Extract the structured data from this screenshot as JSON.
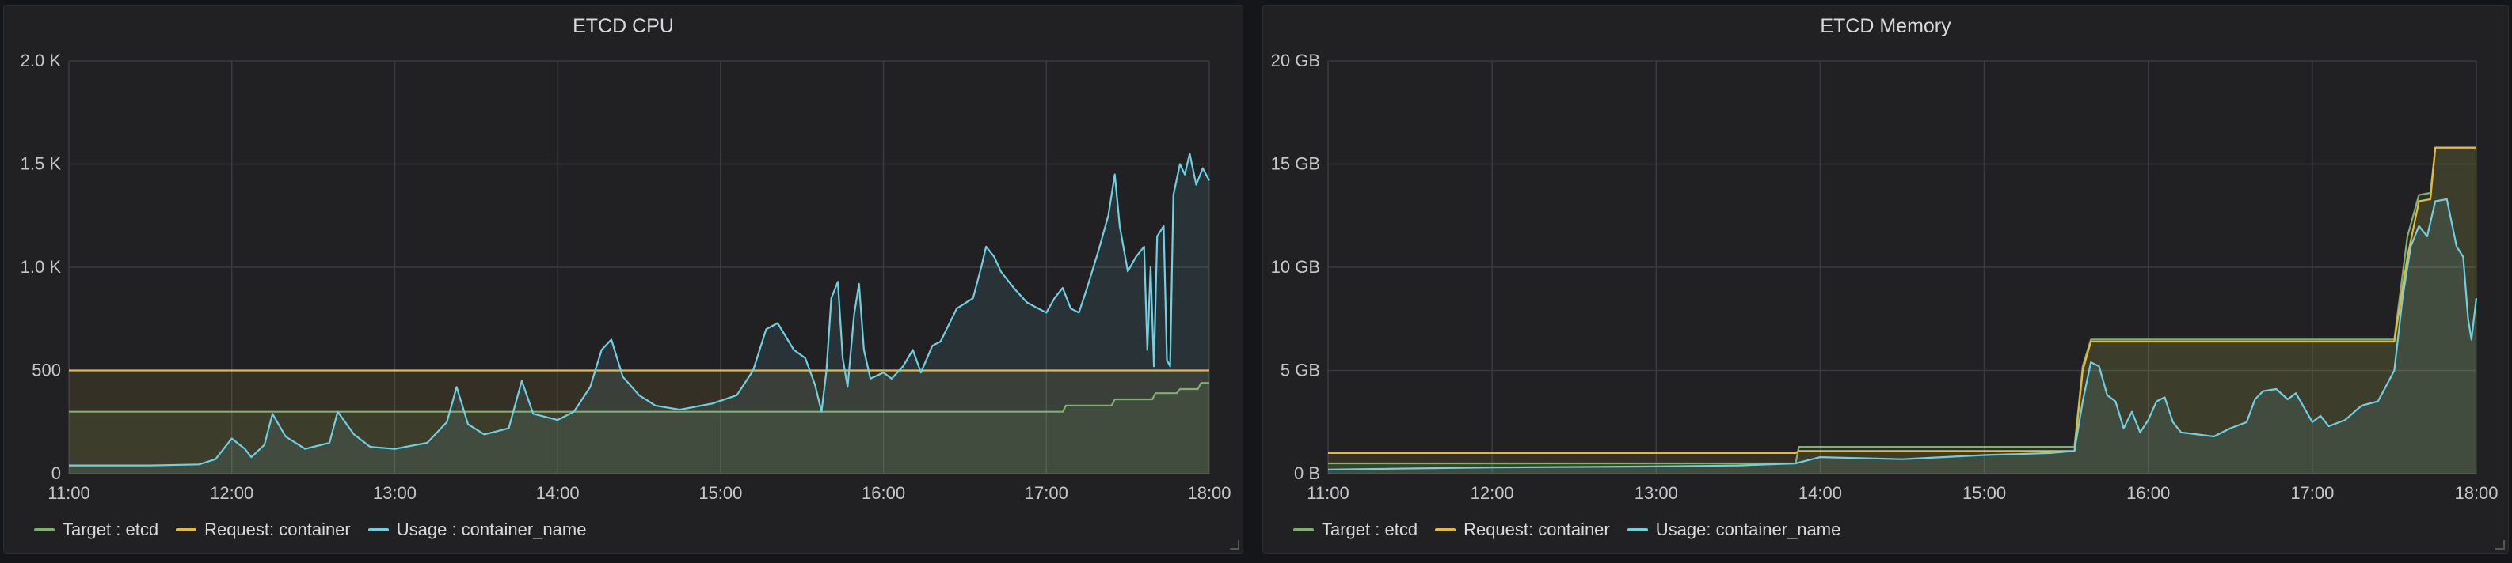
{
  "colors": {
    "target": "#7eb26d",
    "request": "#eab839",
    "usage": "#6ed0e0",
    "grid": "#3a3b3f",
    "tick": "#c7c7c7"
  },
  "chart_data": [
    {
      "type": "line",
      "title": "ETCD CPU",
      "xlabel": "",
      "ylabel": "",
      "x_ticks": [
        "11:00",
        "12:00",
        "13:00",
        "14:00",
        "15:00",
        "16:00",
        "17:00",
        "18:00"
      ],
      "y_ticks": [
        "0",
        "500",
        "1.0 K",
        "1.5 K",
        "2.0 K"
      ],
      "xlim": [
        11,
        18
      ],
      "ylim": [
        0,
        2000
      ],
      "grid": true,
      "legend_position": "bottom-left",
      "series": [
        {
          "name": "Target : etcd",
          "key": "target",
          "points": [
            [
              11,
              300
            ],
            [
              12.25,
              300
            ],
            [
              14.0,
              300
            ],
            [
              15.8,
              300
            ],
            [
              16.4,
              300
            ],
            [
              17.1,
              300
            ],
            [
              17.12,
              330
            ],
            [
              17.4,
              330
            ],
            [
              17.42,
              360
            ],
            [
              17.65,
              360
            ],
            [
              17.67,
              390
            ],
            [
              17.8,
              390
            ],
            [
              17.82,
              410
            ],
            [
              17.93,
              410
            ],
            [
              17.95,
              440
            ],
            [
              18,
              440
            ]
          ]
        },
        {
          "name": "Request: container",
          "key": "request",
          "points": [
            [
              11,
              500
            ],
            [
              18,
              500
            ]
          ]
        },
        {
          "name": "Usage : container_name",
          "key": "usage",
          "points": [
            [
              11,
              40
            ],
            [
              11.5,
              40
            ],
            [
              11.8,
              45
            ],
            [
              11.9,
              70
            ],
            [
              12.0,
              170
            ],
            [
              12.08,
              120
            ],
            [
              12.12,
              80
            ],
            [
              12.2,
              140
            ],
            [
              12.25,
              290
            ],
            [
              12.33,
              180
            ],
            [
              12.45,
              120
            ],
            [
              12.6,
              150
            ],
            [
              12.65,
              300
            ],
            [
              12.75,
              190
            ],
            [
              12.85,
              130
            ],
            [
              13.0,
              120
            ],
            [
              13.2,
              150
            ],
            [
              13.32,
              250
            ],
            [
              13.38,
              420
            ],
            [
              13.45,
              240
            ],
            [
              13.55,
              190
            ],
            [
              13.7,
              220
            ],
            [
              13.78,
              450
            ],
            [
              13.85,
              290
            ],
            [
              14.0,
              260
            ],
            [
              14.1,
              300
            ],
            [
              14.2,
              420
            ],
            [
              14.27,
              600
            ],
            [
              14.33,
              650
            ],
            [
              14.4,
              470
            ],
            [
              14.5,
              380
            ],
            [
              14.6,
              330
            ],
            [
              14.75,
              310
            ],
            [
              14.95,
              340
            ],
            [
              15.1,
              380
            ],
            [
              15.2,
              500
            ],
            [
              15.28,
              700
            ],
            [
              15.35,
              730
            ],
            [
              15.45,
              600
            ],
            [
              15.52,
              560
            ],
            [
              15.58,
              430
            ],
            [
              15.62,
              300
            ],
            [
              15.65,
              500
            ],
            [
              15.68,
              850
            ],
            [
              15.72,
              930
            ],
            [
              15.75,
              560
            ],
            [
              15.78,
              420
            ],
            [
              15.82,
              770
            ],
            [
              15.85,
              920
            ],
            [
              15.88,
              600
            ],
            [
              15.92,
              460
            ],
            [
              16.0,
              490
            ],
            [
              16.05,
              460
            ],
            [
              16.12,
              520
            ],
            [
              16.18,
              600
            ],
            [
              16.23,
              490
            ],
            [
              16.3,
              620
            ],
            [
              16.35,
              640
            ],
            [
              16.45,
              800
            ],
            [
              16.55,
              850
            ],
            [
              16.6,
              1000
            ],
            [
              16.63,
              1100
            ],
            [
              16.68,
              1050
            ],
            [
              16.72,
              980
            ],
            [
              16.8,
              900
            ],
            [
              16.88,
              830
            ],
            [
              16.95,
              800
            ],
            [
              17.0,
              780
            ],
            [
              17.05,
              850
            ],
            [
              17.1,
              900
            ],
            [
              17.15,
              800
            ],
            [
              17.2,
              780
            ],
            [
              17.25,
              900
            ],
            [
              17.32,
              1080
            ],
            [
              17.38,
              1250
            ],
            [
              17.42,
              1450
            ],
            [
              17.45,
              1200
            ],
            [
              17.5,
              980
            ],
            [
              17.55,
              1050
            ],
            [
              17.6,
              1100
            ],
            [
              17.62,
              600
            ],
            [
              17.64,
              1000
            ],
            [
              17.66,
              520
            ],
            [
              17.68,
              1150
            ],
            [
              17.72,
              1200
            ],
            [
              17.74,
              550
            ],
            [
              17.76,
              520
            ],
            [
              17.78,
              1350
            ],
            [
              17.82,
              1500
            ],
            [
              17.85,
              1450
            ],
            [
              17.88,
              1550
            ],
            [
              17.92,
              1400
            ],
            [
              17.96,
              1480
            ],
            [
              18,
              1420
            ]
          ]
        }
      ]
    },
    {
      "type": "line",
      "title": "ETCD Memory",
      "xlabel": "",
      "ylabel": "",
      "x_ticks": [
        "11:00",
        "12:00",
        "13:00",
        "14:00",
        "15:00",
        "16:00",
        "17:00",
        "18:00"
      ],
      "y_ticks": [
        "0 B",
        "5 GB",
        "10 GB",
        "15 GB",
        "20 GB"
      ],
      "xlim": [
        11,
        18
      ],
      "ylim": [
        0,
        20
      ],
      "grid": true,
      "legend_position": "bottom-left",
      "series": [
        {
          "name": "Target : etcd",
          "key": "target",
          "points": [
            [
              11,
              0.5
            ],
            [
              13.85,
              0.5
            ],
            [
              13.87,
              1.3
            ],
            [
              15.55,
              1.3
            ],
            [
              15.6,
              5.2
            ],
            [
              15.65,
              6.5
            ],
            [
              17.5,
              6.5
            ],
            [
              17.58,
              11.5
            ],
            [
              17.65,
              13.5
            ],
            [
              17.72,
              13.6
            ],
            [
              17.75,
              15.8
            ],
            [
              18,
              15.8
            ]
          ]
        },
        {
          "name": "Request: container",
          "key": "request",
          "points": [
            [
              11,
              1.0
            ],
            [
              13.85,
              1.0
            ],
            [
              13.87,
              1.1
            ],
            [
              15.55,
              1.1
            ],
            [
              15.6,
              5.0
            ],
            [
              15.65,
              6.4
            ],
            [
              17.5,
              6.4
            ],
            [
              17.58,
              10.5
            ],
            [
              17.65,
              13.2
            ],
            [
              17.72,
              13.3
            ],
            [
              17.75,
              15.8
            ],
            [
              18,
              15.8
            ]
          ]
        },
        {
          "name": "Usage: container_name",
          "key": "usage",
          "points": [
            [
              11,
              0.2
            ],
            [
              12.0,
              0.3
            ],
            [
              13.0,
              0.35
            ],
            [
              13.5,
              0.4
            ],
            [
              13.85,
              0.5
            ],
            [
              14.0,
              0.8
            ],
            [
              14.5,
              0.7
            ],
            [
              15.0,
              0.9
            ],
            [
              15.4,
              1.0
            ],
            [
              15.55,
              1.1
            ],
            [
              15.6,
              3.5
            ],
            [
              15.65,
              5.4
            ],
            [
              15.7,
              5.2
            ],
            [
              15.75,
              3.8
            ],
            [
              15.8,
              3.5
            ],
            [
              15.85,
              2.2
            ],
            [
              15.9,
              3.0
            ],
            [
              15.95,
              2.0
            ],
            [
              16.0,
              2.6
            ],
            [
              16.05,
              3.5
            ],
            [
              16.1,
              3.7
            ],
            [
              16.15,
              2.5
            ],
            [
              16.2,
              2.0
            ],
            [
              16.3,
              1.9
            ],
            [
              16.4,
              1.8
            ],
            [
              16.5,
              2.2
            ],
            [
              16.6,
              2.5
            ],
            [
              16.65,
              3.6
            ],
            [
              16.7,
              4.0
            ],
            [
              16.78,
              4.1
            ],
            [
              16.85,
              3.6
            ],
            [
              16.9,
              3.9
            ],
            [
              16.95,
              3.2
            ],
            [
              17.0,
              2.5
            ],
            [
              17.05,
              2.8
            ],
            [
              17.1,
              2.3
            ],
            [
              17.2,
              2.6
            ],
            [
              17.3,
              3.3
            ],
            [
              17.4,
              3.5
            ],
            [
              17.5,
              5.0
            ],
            [
              17.55,
              8.5
            ],
            [
              17.6,
              11.0
            ],
            [
              17.65,
              12.0
            ],
            [
              17.7,
              11.5
            ],
            [
              17.75,
              13.2
            ],
            [
              17.82,
              13.3
            ],
            [
              17.88,
              11.0
            ],
            [
              17.92,
              10.5
            ],
            [
              17.95,
              7.5
            ],
            [
              17.97,
              6.5
            ],
            [
              18,
              8.5
            ]
          ]
        }
      ]
    }
  ]
}
